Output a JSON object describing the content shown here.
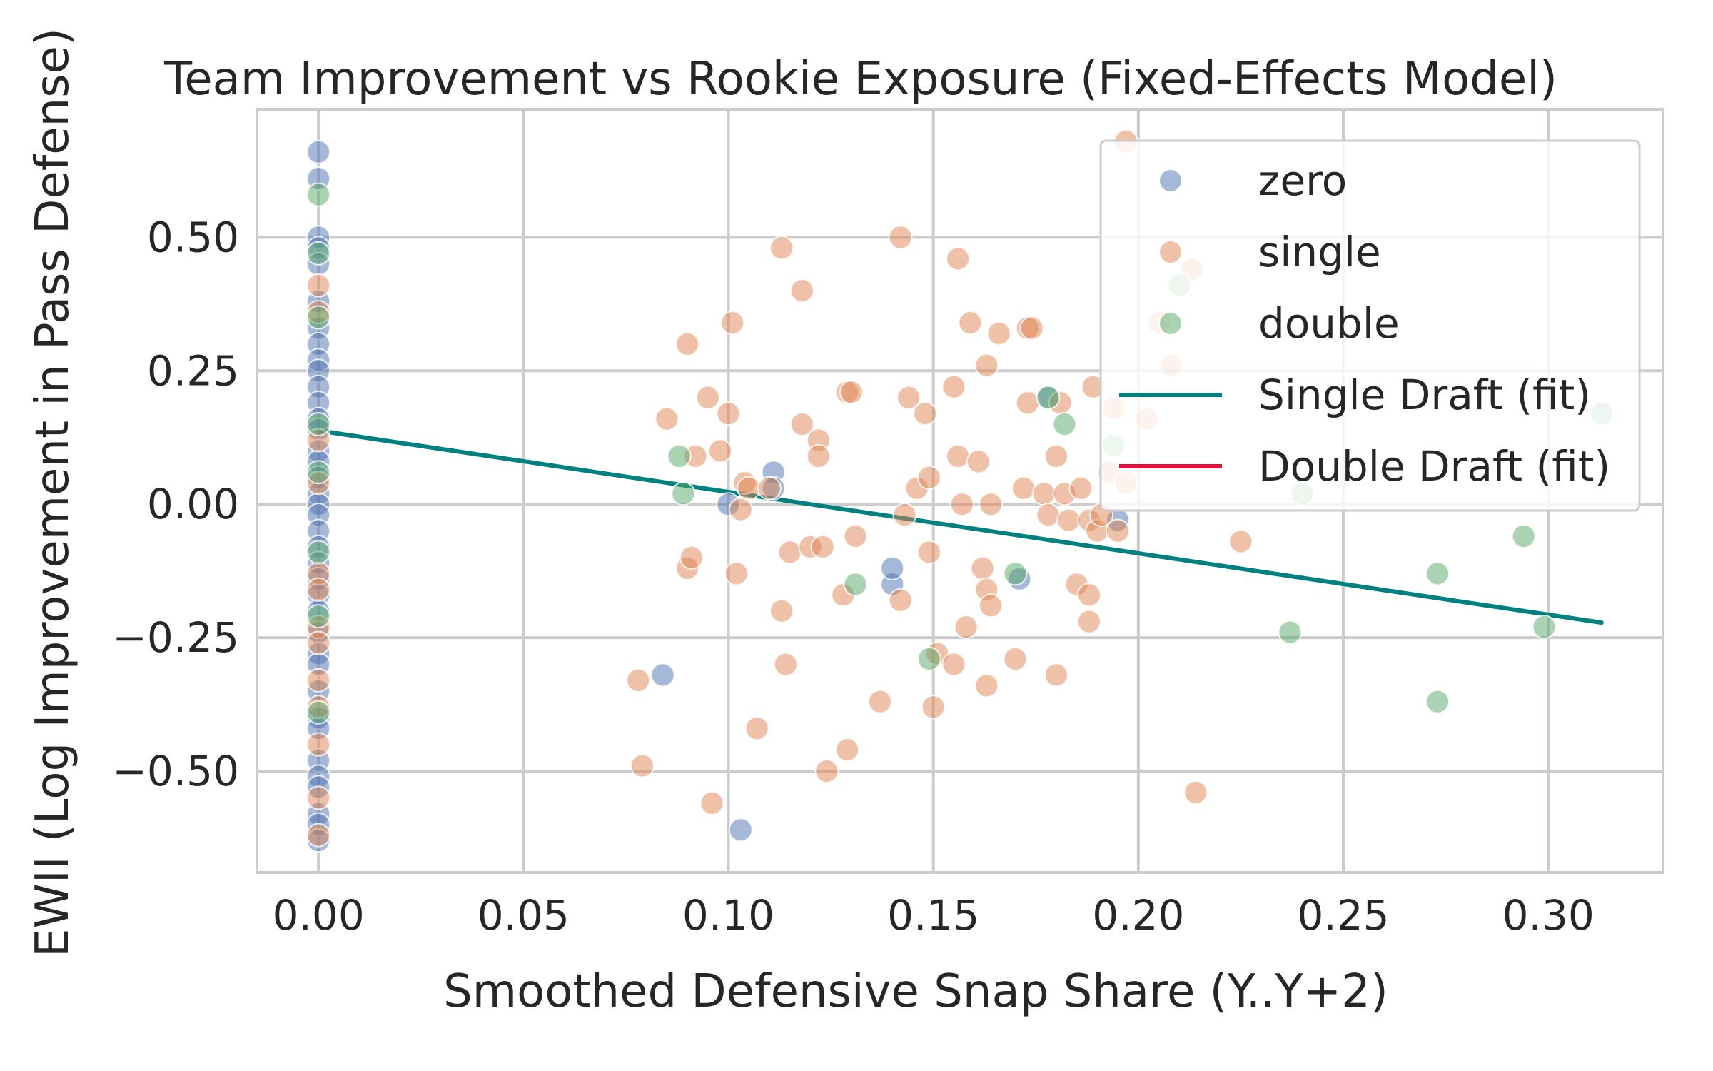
{
  "chart_data": {
    "type": "scatter",
    "title": "Team Improvement vs Rookie Exposure (Fixed-Effects Model)",
    "xlabel": "Smoothed Defensive Snap Share (Y..Y+2)",
    "ylabel": "EWII (Log Improvement in Pass Defense)",
    "xlim": [
      -0.015,
      0.328
    ],
    "ylim": [
      -0.69,
      0.74
    ],
    "xticks": [
      0.0,
      0.05,
      0.1,
      0.15,
      0.2,
      0.25,
      0.3
    ],
    "xtick_labels": [
      "0.00",
      "0.05",
      "0.10",
      "0.15",
      "0.20",
      "0.25",
      "0.30"
    ],
    "yticks": [
      -0.5,
      -0.25,
      0.0,
      0.25,
      0.5
    ],
    "ytick_labels": [
      "−0.50",
      "−0.25",
      "0.00",
      "0.25",
      "0.50"
    ],
    "grid": true,
    "legend_position": "top-right",
    "series": [
      {
        "name": "zero",
        "color": "#4c72b0",
        "points": [
          [
            0,
            0.66
          ],
          [
            0,
            0.61
          ],
          [
            0,
            0.5
          ],
          [
            0,
            0.48
          ],
          [
            0,
            0.45
          ],
          [
            0,
            0.38
          ],
          [
            0,
            0.33
          ],
          [
            0,
            0.3
          ],
          [
            0,
            0.27
          ],
          [
            0,
            0.25
          ],
          [
            0,
            0.22
          ],
          [
            0,
            0.19
          ],
          [
            0,
            0.16
          ],
          [
            0,
            0.14
          ],
          [
            0,
            0.1
          ],
          [
            0,
            0.08
          ],
          [
            0,
            0.05
          ],
          [
            0,
            0.02
          ],
          [
            0,
            0.0
          ],
          [
            0,
            -0.02
          ],
          [
            0,
            -0.05
          ],
          [
            0,
            -0.08
          ],
          [
            0,
            -0.11
          ],
          [
            0,
            -0.14
          ],
          [
            0,
            -0.17
          ],
          [
            0,
            -0.2
          ],
          [
            0,
            -0.24
          ],
          [
            0,
            -0.28
          ],
          [
            0,
            -0.3
          ],
          [
            0,
            -0.35
          ],
          [
            0,
            -0.4
          ],
          [
            0,
            -0.42
          ],
          [
            0,
            -0.48
          ],
          [
            0,
            -0.51
          ],
          [
            0,
            -0.53
          ],
          [
            0,
            -0.58
          ],
          [
            0,
            -0.6
          ],
          [
            0,
            -0.63
          ],
          [
            0.084,
            -0.32
          ],
          [
            0.1,
            0.0
          ],
          [
            0.103,
            -0.61
          ],
          [
            0.111,
            0.06
          ],
          [
            0.111,
            0.03
          ],
          [
            0.14,
            -0.15
          ],
          [
            0.14,
            -0.12
          ],
          [
            0.171,
            -0.14
          ],
          [
            0.178,
            0.2
          ],
          [
            0.195,
            -0.03
          ]
        ]
      },
      {
        "name": "single",
        "color": "#dd8452",
        "points": [
          [
            0,
            0.41
          ],
          [
            0,
            0.36
          ],
          [
            0,
            0.12
          ],
          [
            0,
            0.04
          ],
          [
            0,
            -0.13
          ],
          [
            0,
            -0.16
          ],
          [
            0,
            -0.23
          ],
          [
            0,
            -0.26
          ],
          [
            0,
            -0.33
          ],
          [
            0,
            -0.38
          ],
          [
            0,
            -0.45
          ],
          [
            0,
            -0.55
          ],
          [
            0,
            -0.62
          ],
          [
            0.078,
            -0.33
          ],
          [
            0.079,
            -0.49
          ],
          [
            0.085,
            0.16
          ],
          [
            0.09,
            0.3
          ],
          [
            0.09,
            -0.12
          ],
          [
            0.091,
            -0.1
          ],
          [
            0.092,
            0.09
          ],
          [
            0.095,
            0.2
          ],
          [
            0.096,
            -0.56
          ],
          [
            0.098,
            0.1
          ],
          [
            0.1,
            0.17
          ],
          [
            0.101,
            0.34
          ],
          [
            0.102,
            -0.13
          ],
          [
            0.103,
            -0.01
          ],
          [
            0.104,
            0.04
          ],
          [
            0.105,
            0.03
          ],
          [
            0.107,
            -0.42
          ],
          [
            0.11,
            0.03
          ],
          [
            0.113,
            0.48
          ],
          [
            0.113,
            -0.2
          ],
          [
            0.114,
            -0.3
          ],
          [
            0.115,
            -0.09
          ],
          [
            0.118,
            0.4
          ],
          [
            0.118,
            0.15
          ],
          [
            0.12,
            -0.08
          ],
          [
            0.122,
            0.12
          ],
          [
            0.122,
            0.09
          ],
          [
            0.123,
            -0.08
          ],
          [
            0.124,
            -0.5
          ],
          [
            0.128,
            -0.17
          ],
          [
            0.129,
            -0.46
          ],
          [
            0.129,
            0.21
          ],
          [
            0.13,
            0.21
          ],
          [
            0.131,
            -0.06
          ],
          [
            0.137,
            -0.37
          ],
          [
            0.142,
            0.5
          ],
          [
            0.142,
            -0.18
          ],
          [
            0.143,
            -0.02
          ],
          [
            0.144,
            0.2
          ],
          [
            0.146,
            0.03
          ],
          [
            0.148,
            0.17
          ],
          [
            0.149,
            -0.09
          ],
          [
            0.149,
            0.05
          ],
          [
            0.15,
            -0.38
          ],
          [
            0.151,
            -0.28
          ],
          [
            0.155,
            0.22
          ],
          [
            0.155,
            -0.3
          ],
          [
            0.156,
            0.09
          ],
          [
            0.156,
            0.46
          ],
          [
            0.157,
            0.0
          ],
          [
            0.158,
            -0.23
          ],
          [
            0.159,
            0.34
          ],
          [
            0.161,
            0.08
          ],
          [
            0.162,
            -0.12
          ],
          [
            0.163,
            -0.34
          ],
          [
            0.163,
            0.26
          ],
          [
            0.163,
            -0.16
          ],
          [
            0.164,
            -0.19
          ],
          [
            0.164,
            0.0
          ],
          [
            0.166,
            0.32
          ],
          [
            0.17,
            -0.29
          ],
          [
            0.172,
            0.03
          ],
          [
            0.173,
            0.33
          ],
          [
            0.173,
            0.19
          ],
          [
            0.174,
            0.33
          ],
          [
            0.177,
            0.02
          ],
          [
            0.178,
            -0.02
          ],
          [
            0.18,
            0.09
          ],
          [
            0.18,
            -0.32
          ],
          [
            0.181,
            0.19
          ],
          [
            0.182,
            0.02
          ],
          [
            0.183,
            -0.03
          ],
          [
            0.185,
            -0.15
          ],
          [
            0.186,
            0.03
          ],
          [
            0.188,
            -0.03
          ],
          [
            0.188,
            -0.17
          ],
          [
            0.188,
            -0.22
          ],
          [
            0.189,
            0.22
          ],
          [
            0.19,
            -0.05
          ],
          [
            0.191,
            -0.02
          ],
          [
            0.193,
            0.06
          ],
          [
            0.194,
            0.18
          ],
          [
            0.195,
            -0.05
          ],
          [
            0.197,
            0.04
          ],
          [
            0.197,
            0.68
          ],
          [
            0.202,
            0.16
          ],
          [
            0.205,
            0.34
          ],
          [
            0.208,
            0.26
          ],
          [
            0.213,
            0.44
          ],
          [
            0.214,
            -0.54
          ],
          [
            0.225,
            -0.07
          ]
        ]
      },
      {
        "name": "double",
        "color": "#55a868",
        "points": [
          [
            0,
            0.58
          ],
          [
            0,
            0.47
          ],
          [
            0,
            0.35
          ],
          [
            0,
            0.15
          ],
          [
            0,
            0.06
          ],
          [
            0,
            -0.09
          ],
          [
            0,
            -0.21
          ],
          [
            0,
            -0.39
          ],
          [
            0.088,
            0.09
          ],
          [
            0.089,
            0.02
          ],
          [
            0.131,
            -0.15
          ],
          [
            0.149,
            -0.29
          ],
          [
            0.17,
            -0.13
          ],
          [
            0.178,
            0.2
          ],
          [
            0.182,
            0.15
          ],
          [
            0.194,
            0.11
          ],
          [
            0.21,
            0.41
          ],
          [
            0.24,
            0.02
          ],
          [
            0.237,
            -0.24
          ],
          [
            0.273,
            -0.13
          ],
          [
            0.273,
            -0.37
          ],
          [
            0.294,
            -0.06
          ],
          [
            0.299,
            -0.23
          ],
          [
            0.313,
            0.17
          ]
        ]
      }
    ],
    "fits": [
      {
        "name": "Single Draft (fit)",
        "color": "#008080",
        "x": [
          0.0,
          0.313
        ],
        "y": [
          0.138,
          -0.222
        ]
      },
      {
        "name": "Double Draft (fit)",
        "color": "#dc143c",
        "x": [],
        "y": []
      }
    ]
  }
}
